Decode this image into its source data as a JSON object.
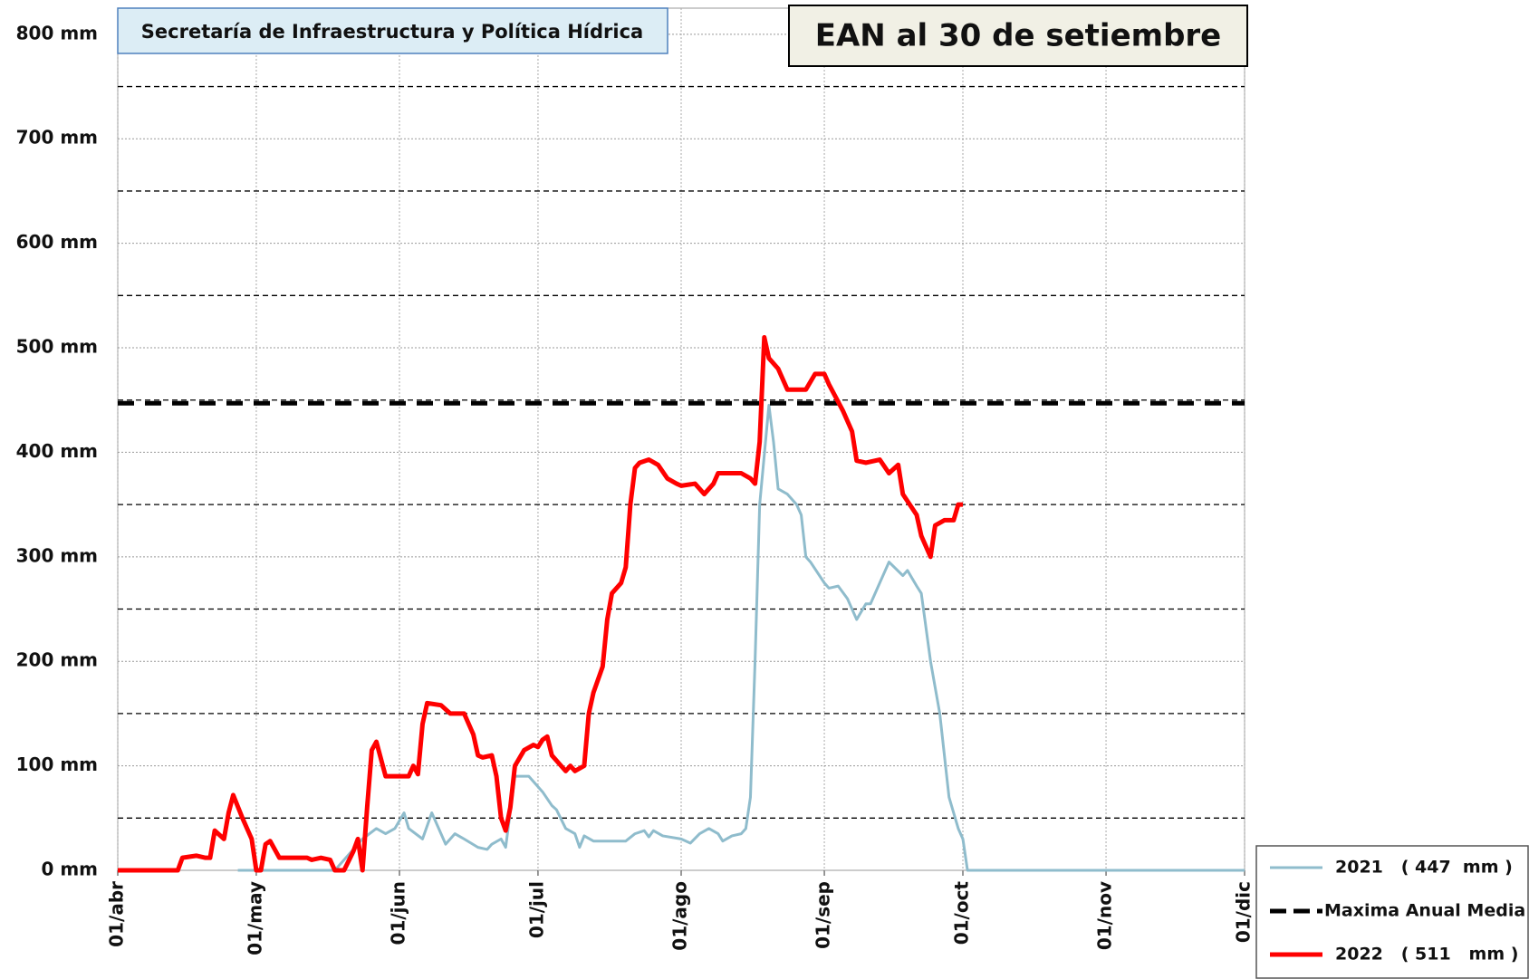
{
  "chart_data": {
    "type": "line",
    "title": "EAN al 30 de setiembre",
    "subtitle": "Secretaría de Infraestructura y Política Hídrica",
    "xlim": [
      0,
      244
    ],
    "xticks": [
      {
        "value": 0,
        "label": "01/abr"
      },
      {
        "value": 30,
        "label": "01/may"
      },
      {
        "value": 61,
        "label": "01/jun"
      },
      {
        "value": 91,
        "label": "01/jul"
      },
      {
        "value": 122,
        "label": "01/ago"
      },
      {
        "value": 153,
        "label": "01/sep"
      },
      {
        "value": 183,
        "label": "01/oct"
      },
      {
        "value": 214,
        "label": "01/nov"
      },
      {
        "value": 244,
        "label": "01/dic"
      }
    ],
    "ylim": [
      0,
      825
    ],
    "yticks": [
      {
        "value": 0,
        "label": "0 mm"
      },
      {
        "value": 100,
        "label": "100 mm"
      },
      {
        "value": 200,
        "label": "200 mm"
      },
      {
        "value": 300,
        "label": "300 mm"
      },
      {
        "value": 400,
        "label": "400 mm"
      },
      {
        "value": 500,
        "label": "500 mm"
      },
      {
        "value": 600,
        "label": "600 mm"
      },
      {
        "value": 700,
        "label": "700 mm"
      },
      {
        "value": 800,
        "label": "800 mm"
      }
    ],
    "minor_yticks": [
      50,
      150,
      250,
      350,
      450,
      550,
      650,
      750
    ],
    "grid": true,
    "legend": "lower right",
    "series": [
      {
        "name": "2021   ( 447  mm )",
        "color": "#8fbccc",
        "width": 3,
        "linestyle": "solid",
        "x": [
          26,
          47,
          53,
          56,
          58,
          60,
          62,
          63,
          66,
          68,
          71,
          73,
          75,
          78,
          80,
          81,
          83,
          84,
          86,
          89,
          92,
          94,
          95,
          97,
          99,
          100,
          101,
          103,
          109,
          110,
          112,
          114,
          115,
          116,
          118,
          122,
          124,
          126,
          128,
          130,
          131,
          133,
          135,
          136,
          137,
          138,
          139,
          141,
          142,
          143,
          145,
          147,
          148,
          149,
          150,
          153,
          154,
          156,
          158,
          160,
          162,
          163,
          165,
          167,
          170,
          171,
          173,
          174,
          176,
          178,
          180,
          182,
          183,
          184,
          244
        ],
        "values": [
          0,
          0,
          30,
          40,
          35,
          40,
          55,
          40,
          30,
          55,
          25,
          35,
          30,
          22,
          20,
          25,
          30,
          22,
          90,
          90,
          75,
          62,
          58,
          40,
          35,
          22,
          33,
          28,
          28,
          28,
          35,
          38,
          32,
          38,
          33,
          30,
          26,
          35,
          40,
          35,
          28,
          33,
          35,
          40,
          70,
          200,
          350,
          445,
          410,
          365,
          360,
          350,
          340,
          300,
          295,
          275,
          270,
          272,
          260,
          240,
          255,
          255,
          275,
          295,
          282,
          287,
          272,
          265,
          200,
          150,
          70,
          40,
          30,
          0,
          0
        ]
      },
      {
        "name": "Maxima Anual Media",
        "color": "#000000",
        "width": 5,
        "linestyle": "dashed",
        "x": [
          0,
          244
        ],
        "values": [
          447,
          447
        ]
      },
      {
        "name": "2022   ( 511   mm )",
        "color": "#ff0000",
        "width": 5,
        "linestyle": "solid",
        "x": [
          0,
          13,
          14,
          17,
          19,
          20,
          21,
          23,
          24,
          25,
          27,
          28,
          29,
          30,
          31,
          32,
          33,
          35,
          41,
          42,
          44,
          46,
          47,
          49,
          51,
          52,
          53,
          54,
          55,
          56,
          58,
          63,
          64,
          65,
          66,
          67,
          70,
          72,
          75,
          77,
          78,
          79,
          81,
          82,
          83,
          84,
          85,
          86,
          88,
          90,
          91,
          92,
          93,
          94,
          96,
          97,
          98,
          99,
          101,
          102,
          103,
          105,
          106,
          107,
          109,
          110,
          111,
          112,
          113,
          115,
          117,
          119,
          121,
          122,
          125,
          127,
          129,
          130,
          135,
          137,
          138,
          139,
          140,
          141,
          143,
          145,
          149,
          151,
          153,
          154,
          157,
          159,
          160,
          162,
          165,
          167,
          169,
          170,
          173,
          174,
          176,
          177,
          179,
          181,
          182,
          183
        ],
        "values": [
          0,
          0,
          12,
          14,
          12,
          12,
          38,
          30,
          55,
          72,
          50,
          40,
          30,
          0,
          0,
          25,
          28,
          12,
          12,
          10,
          12,
          10,
          0,
          0,
          18,
          30,
          0,
          60,
          115,
          123,
          90,
          90,
          100,
          92,
          140,
          160,
          158,
          150,
          150,
          130,
          110,
          108,
          110,
          90,
          50,
          38,
          60,
          100,
          115,
          120,
          118,
          125,
          128,
          110,
          100,
          95,
          100,
          95,
          100,
          150,
          170,
          195,
          240,
          265,
          275,
          290,
          350,
          385,
          390,
          393,
          388,
          375,
          370,
          368,
          370,
          360,
          370,
          380,
          380,
          375,
          370,
          410,
          510,
          490,
          480,
          460,
          460,
          475,
          475,
          465,
          440,
          420,
          392,
          390,
          393,
          380,
          388,
          360,
          340,
          320,
          300,
          330,
          335,
          335,
          350,
          350
        ]
      }
    ]
  }
}
